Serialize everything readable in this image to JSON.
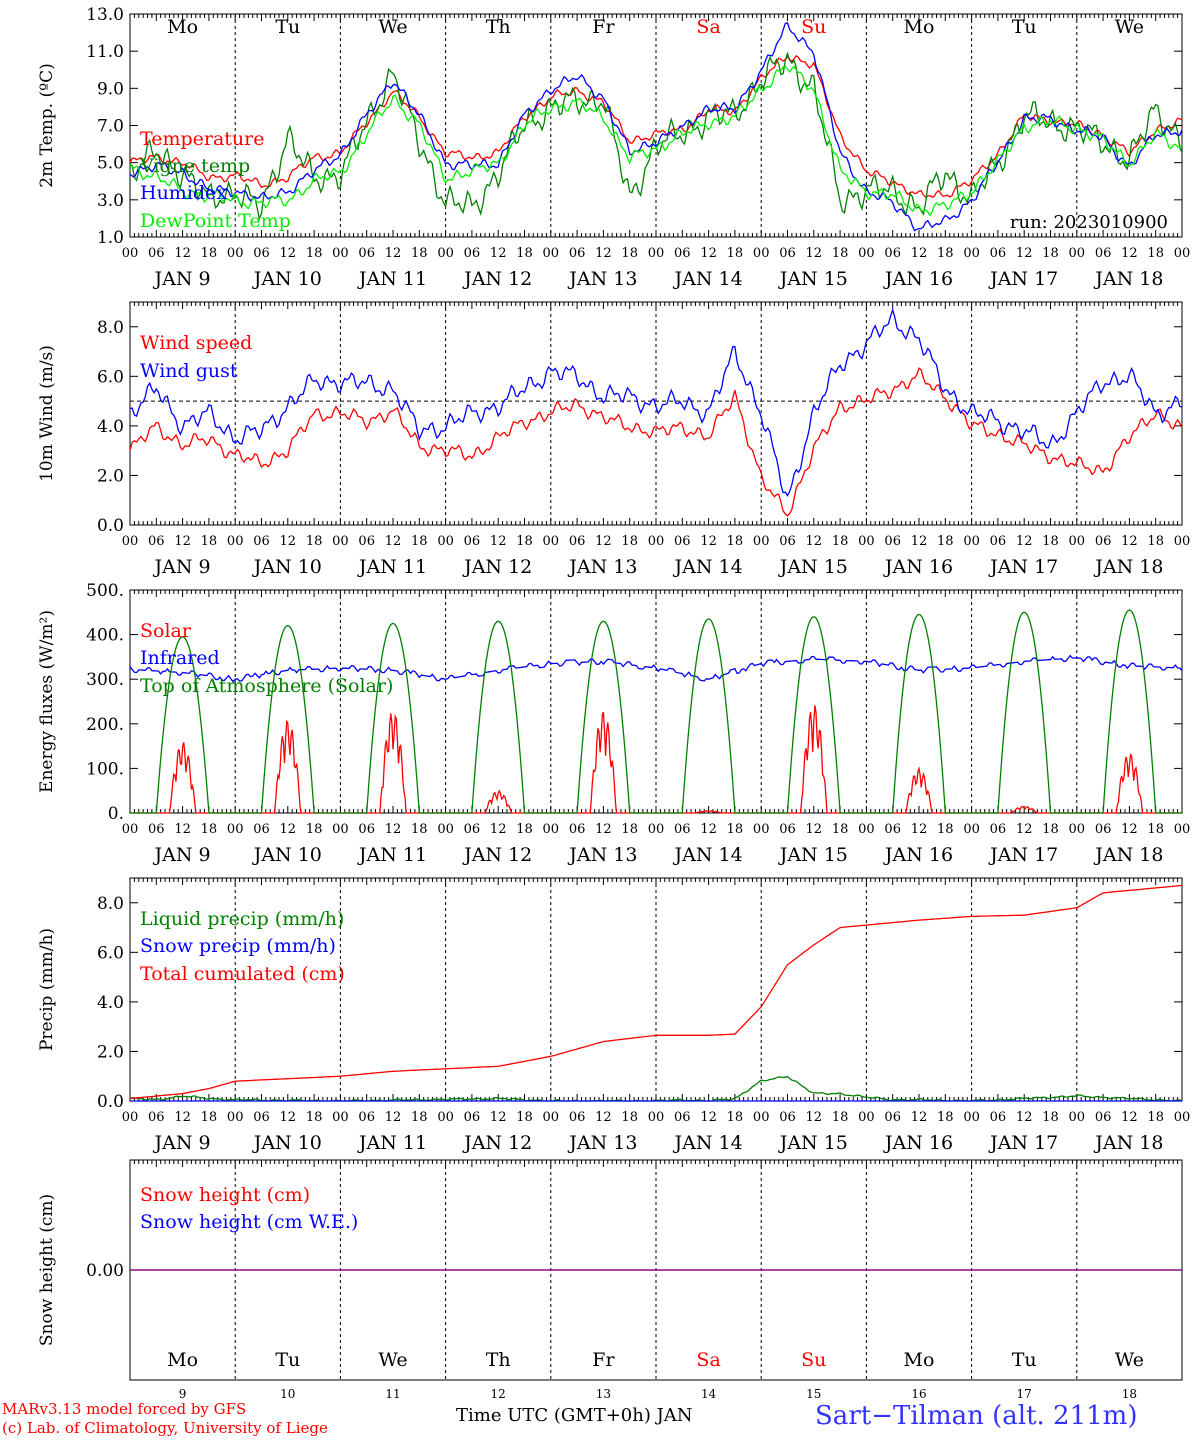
{
  "run_label": "run: 2023010900",
  "station": "Sart−Tilman (alt. 211m)",
  "footer": {
    "model": "MARv3.13 model forced by GFS",
    "credit": "(c) Lab. of Climatology, University of Liege",
    "xlabel": "Time UTC (GMT+0h) JAN"
  },
  "colors": {
    "red": "#ff0000",
    "green": "#008000",
    "blue": "#0000ff",
    "lime": "#00ee00",
    "purple": "#800080"
  },
  "days": [
    {
      "dow": "Mo",
      "date": "JAN  9",
      "day": "9",
      "weekend": false
    },
    {
      "dow": "Tu",
      "date": "JAN 10",
      "day": "10",
      "weekend": false
    },
    {
      "dow": "We",
      "date": "JAN 11",
      "day": "11",
      "weekend": false
    },
    {
      "dow": "Th",
      "date": "JAN 12",
      "day": "12",
      "weekend": false
    },
    {
      "dow": "Fr",
      "date": "JAN 13",
      "day": "13",
      "weekend": false
    },
    {
      "dow": "Sa",
      "date": "JAN 14",
      "day": "14",
      "weekend": true
    },
    {
      "dow": "Su",
      "date": "JAN 15",
      "day": "15",
      "weekend": true
    },
    {
      "dow": "Mo",
      "date": "JAN 16",
      "day": "16",
      "weekend": false
    },
    {
      "dow": "Tu",
      "date": "JAN 17",
      "day": "17",
      "weekend": false
    },
    {
      "dow": "We",
      "date": "JAN 18",
      "day": "18",
      "weekend": false
    }
  ],
  "hour_ticks": [
    "00",
    "06",
    "12",
    "18"
  ],
  "chart_data": [
    {
      "type": "line",
      "ylabel": "2m Temp. (ºC)",
      "ylim": [
        1.0,
        13.0
      ],
      "yticks": [
        "1.0",
        "3.0",
        "5.0",
        "7.0",
        "9.0",
        "11.0",
        "13.0"
      ],
      "x_unit": "hours since JAN 9 00 UTC",
      "series": [
        {
          "name": "Temperature",
          "color": "#ff0000",
          "x": [
            0,
            6,
            12,
            18,
            24,
            30,
            36,
            42,
            48,
            54,
            60,
            66,
            72,
            78,
            84,
            90,
            96,
            102,
            108,
            114,
            120,
            126,
            132,
            138,
            144,
            150,
            156,
            162,
            168,
            174,
            180,
            186,
            192,
            198,
            204,
            210,
            216,
            222,
            228,
            234,
            240
          ],
          "y": [
            5.0,
            5.3,
            5.0,
            4.2,
            4.3,
            3.8,
            4.2,
            5.3,
            5.5,
            7.2,
            8.8,
            7.5,
            5.5,
            5.3,
            5.5,
            7.5,
            8.5,
            8.9,
            8.2,
            6.2,
            6.5,
            6.8,
            7.8,
            7.8,
            9.5,
            10.8,
            10.2,
            6.5,
            4.5,
            4.0,
            3.2,
            3.3,
            4.0,
            5.5,
            7.5,
            7.3,
            7.0,
            6.5,
            5.5,
            6.8,
            7.2
          ]
        },
        {
          "name": "Vigne temp",
          "color": "#008000",
          "x": [
            0,
            6,
            12,
            18,
            24,
            30,
            36,
            42,
            48,
            54,
            60,
            66,
            72,
            78,
            84,
            90,
            96,
            102,
            108,
            114,
            120,
            126,
            132,
            138,
            144,
            150,
            156,
            162,
            168,
            174,
            180,
            186,
            192,
            198,
            204,
            210,
            216,
            222,
            228,
            234,
            240
          ],
          "y": [
            4.5,
            5.5,
            4.5,
            3.0,
            3.5,
            2.5,
            6.5,
            4.0,
            4.5,
            7.0,
            10.0,
            6.0,
            3.0,
            2.5,
            4.5,
            7.0,
            8.0,
            8.3,
            8.5,
            3.0,
            6.0,
            6.5,
            7.5,
            7.6,
            9.5,
            10.5,
            9.0,
            3.0,
            3.5,
            3.5,
            2.5,
            4.5,
            3.0,
            5.0,
            7.5,
            7.2,
            6.8,
            6.2,
            5.0,
            8.0,
            6.0
          ]
        },
        {
          "name": "Humidex",
          "color": "#0000ff",
          "x": [
            0,
            6,
            12,
            18,
            24,
            30,
            36,
            42,
            48,
            54,
            60,
            66,
            72,
            78,
            84,
            90,
            96,
            102,
            108,
            114,
            120,
            126,
            132,
            138,
            144,
            150,
            156,
            162,
            168,
            174,
            180,
            186,
            192,
            198,
            204,
            210,
            216,
            222,
            228,
            234,
            240
          ],
          "y": [
            4.5,
            4.8,
            4.5,
            3.5,
            3.5,
            3.0,
            3.5,
            4.5,
            5.5,
            7.5,
            9.5,
            7.5,
            5.0,
            4.8,
            5.0,
            7.5,
            9.0,
            9.6,
            8.5,
            5.5,
            6.2,
            6.8,
            8.0,
            7.8,
            10.0,
            12.3,
            11.0,
            5.5,
            3.5,
            2.8,
            1.5,
            1.8,
            3.0,
            5.0,
            7.4,
            7.3,
            6.8,
            6.3,
            4.8,
            6.5,
            6.8
          ]
        },
        {
          "name": "DewPoint Temp",
          "color": "#00ee00",
          "x": [
            0,
            6,
            12,
            18,
            24,
            30,
            36,
            42,
            48,
            54,
            60,
            66,
            72,
            78,
            84,
            90,
            96,
            102,
            108,
            114,
            120,
            126,
            132,
            138,
            144,
            150,
            156,
            162,
            168,
            174,
            180,
            186,
            192,
            198,
            204,
            210,
            216,
            222,
            228,
            234,
            240
          ],
          "y": [
            4.8,
            4.2,
            3.5,
            3.2,
            3.0,
            2.8,
            3.0,
            4.0,
            4.5,
            6.5,
            8.5,
            7.0,
            4.2,
            4.5,
            5.0,
            7.0,
            8.0,
            8.2,
            7.5,
            5.2,
            5.8,
            6.5,
            7.2,
            7.4,
            9.0,
            10.2,
            9.0,
            4.5,
            3.5,
            3.2,
            2.5,
            2.6,
            3.5,
            5.0,
            7.0,
            7.2,
            6.9,
            6.2,
            5.0,
            6.5,
            5.8
          ]
        }
      ]
    },
    {
      "type": "line",
      "ylabel": "10m Wind (m/s)",
      "ylim": [
        0.0,
        9.0
      ],
      "yticks": [
        "0.0",
        "2.0",
        "4.0",
        "6.0",
        "8.0"
      ],
      "reference_line": 5.0,
      "x_unit": "hours since JAN 9 00 UTC",
      "series": [
        {
          "name": "Wind speed",
          "color": "#ff0000",
          "x": [
            0,
            6,
            12,
            18,
            24,
            30,
            36,
            42,
            48,
            54,
            60,
            66,
            72,
            78,
            84,
            90,
            96,
            102,
            108,
            114,
            120,
            126,
            132,
            138,
            144,
            150,
            156,
            162,
            168,
            174,
            180,
            186,
            192,
            198,
            204,
            210,
            216,
            222,
            228,
            234,
            240
          ],
          "y": [
            3.0,
            4.0,
            3.2,
            3.5,
            2.8,
            2.5,
            3.0,
            4.5,
            4.5,
            4.2,
            4.6,
            3.2,
            3.0,
            2.8,
            3.5,
            4.2,
            4.5,
            4.9,
            4.3,
            4.0,
            3.7,
            4.0,
            3.5,
            5.3,
            1.8,
            0.5,
            3.0,
            4.8,
            5.0,
            5.5,
            6.0,
            5.2,
            4.0,
            3.7,
            3.2,
            2.8,
            2.4,
            2.2,
            3.5,
            4.6,
            3.8
          ]
        },
        {
          "name": "Wind gust",
          "color": "#0000ff",
          "x": [
            0,
            6,
            12,
            18,
            24,
            30,
            36,
            42,
            48,
            54,
            60,
            66,
            72,
            78,
            84,
            90,
            96,
            102,
            108,
            114,
            120,
            126,
            132,
            138,
            144,
            150,
            156,
            162,
            168,
            174,
            180,
            186,
            192,
            198,
            204,
            210,
            216,
            222,
            228,
            234,
            240
          ],
          "y": [
            4.5,
            5.5,
            4.0,
            4.5,
            3.5,
            3.8,
            4.8,
            5.8,
            5.8,
            5.7,
            5.5,
            3.8,
            4.0,
            4.5,
            4.8,
            5.5,
            6.2,
            6.0,
            5.2,
            5.2,
            4.8,
            5.0,
            4.5,
            7.0,
            4.5,
            1.0,
            4.5,
            6.5,
            7.3,
            8.3,
            7.5,
            5.5,
            4.5,
            4.2,
            3.8,
            3.2,
            4.5,
            5.8,
            6.0,
            4.5,
            5.0
          ]
        }
      ]
    },
    {
      "type": "line",
      "ylabel": "Energy fluxes (W/m²)",
      "ylim": [
        0,
        500
      ],
      "yticks": [
        "0.",
        "100.",
        "200.",
        "300.",
        "400.",
        "500."
      ],
      "x_unit": "hours since JAN 9 00 UTC",
      "series": [
        {
          "name": "Solar",
          "color": "#ff0000",
          "daily_peak": [
            160,
            210,
            230,
            50,
            230,
            5,
            245,
            100,
            15,
            135
          ]
        },
        {
          "name": "Infrared",
          "color": "#0000ff",
          "x": [
            0,
            12,
            24,
            36,
            48,
            60,
            72,
            84,
            96,
            108,
            120,
            132,
            144,
            156,
            168,
            180,
            192,
            204,
            216,
            228,
            240
          ],
          "y": [
            322,
            315,
            300,
            320,
            325,
            320,
            300,
            320,
            335,
            340,
            325,
            300,
            335,
            345,
            340,
            320,
            325,
            340,
            348,
            330,
            325
          ]
        },
        {
          "name": "Top of Atmosphere (Solar)",
          "color": "#008000",
          "daily_peak": [
            395,
            420,
            425,
            430,
            430,
            435,
            440,
            445,
            450,
            455
          ]
        }
      ]
    },
    {
      "type": "line",
      "ylabel": "Precip (mm/h)",
      "ylim": [
        0.0,
        9.0
      ],
      "yticks": [
        "0.0",
        "2.0",
        "4.0",
        "6.0",
        "8.0"
      ],
      "x_unit": "hours since JAN 9 00 UTC",
      "series": [
        {
          "name": "Liquid precip (mm/h)",
          "color": "#008000",
          "x": [
            0,
            6,
            12,
            18,
            24,
            48,
            84,
            96,
            120,
            126,
            132,
            138,
            144,
            150,
            156,
            162,
            168,
            174,
            180,
            192,
            204,
            216,
            240
          ],
          "y": [
            0.1,
            0.05,
            0.2,
            0.1,
            0.05,
            0.0,
            0.1,
            0.0,
            0.0,
            0.05,
            0.0,
            0.1,
            0.8,
            1.0,
            0.3,
            0.3,
            0.15,
            0.05,
            0.05,
            0.0,
            0.1,
            0.2,
            0.0
          ]
        },
        {
          "name": "Snow precip (mm/h)",
          "color": "#0000ff",
          "x": [
            0,
            240
          ],
          "y": [
            0.0,
            0.0
          ]
        },
        {
          "name": "Total cumulated (cm)",
          "color": "#ff0000",
          "x": [
            0,
            12,
            18,
            24,
            36,
            48,
            60,
            72,
            84,
            96,
            108,
            120,
            132,
            138,
            144,
            150,
            156,
            162,
            168,
            180,
            192,
            204,
            216,
            222,
            228,
            240
          ],
          "y": [
            0.1,
            0.3,
            0.5,
            0.8,
            0.9,
            1.0,
            1.2,
            1.3,
            1.4,
            1.8,
            2.4,
            2.65,
            2.65,
            2.7,
            3.8,
            5.5,
            6.3,
            7.0,
            7.1,
            7.3,
            7.45,
            7.5,
            7.8,
            8.4,
            8.5,
            8.7
          ]
        }
      ]
    },
    {
      "type": "line",
      "ylabel": "Snow height (cm)",
      "ylim": [
        -1,
        1
      ],
      "yticks": [
        "0.00"
      ],
      "x_unit": "hours since JAN 9 00 UTC",
      "series": [
        {
          "name": "Snow height (cm)",
          "color": "#ff0000",
          "x": [
            0,
            240
          ],
          "y": [
            0,
            0
          ]
        },
        {
          "name": "Snow height (cm W.E.)",
          "color": "#0000ff",
          "x": [
            0,
            240
          ],
          "y": [
            0,
            0
          ]
        }
      ]
    }
  ]
}
